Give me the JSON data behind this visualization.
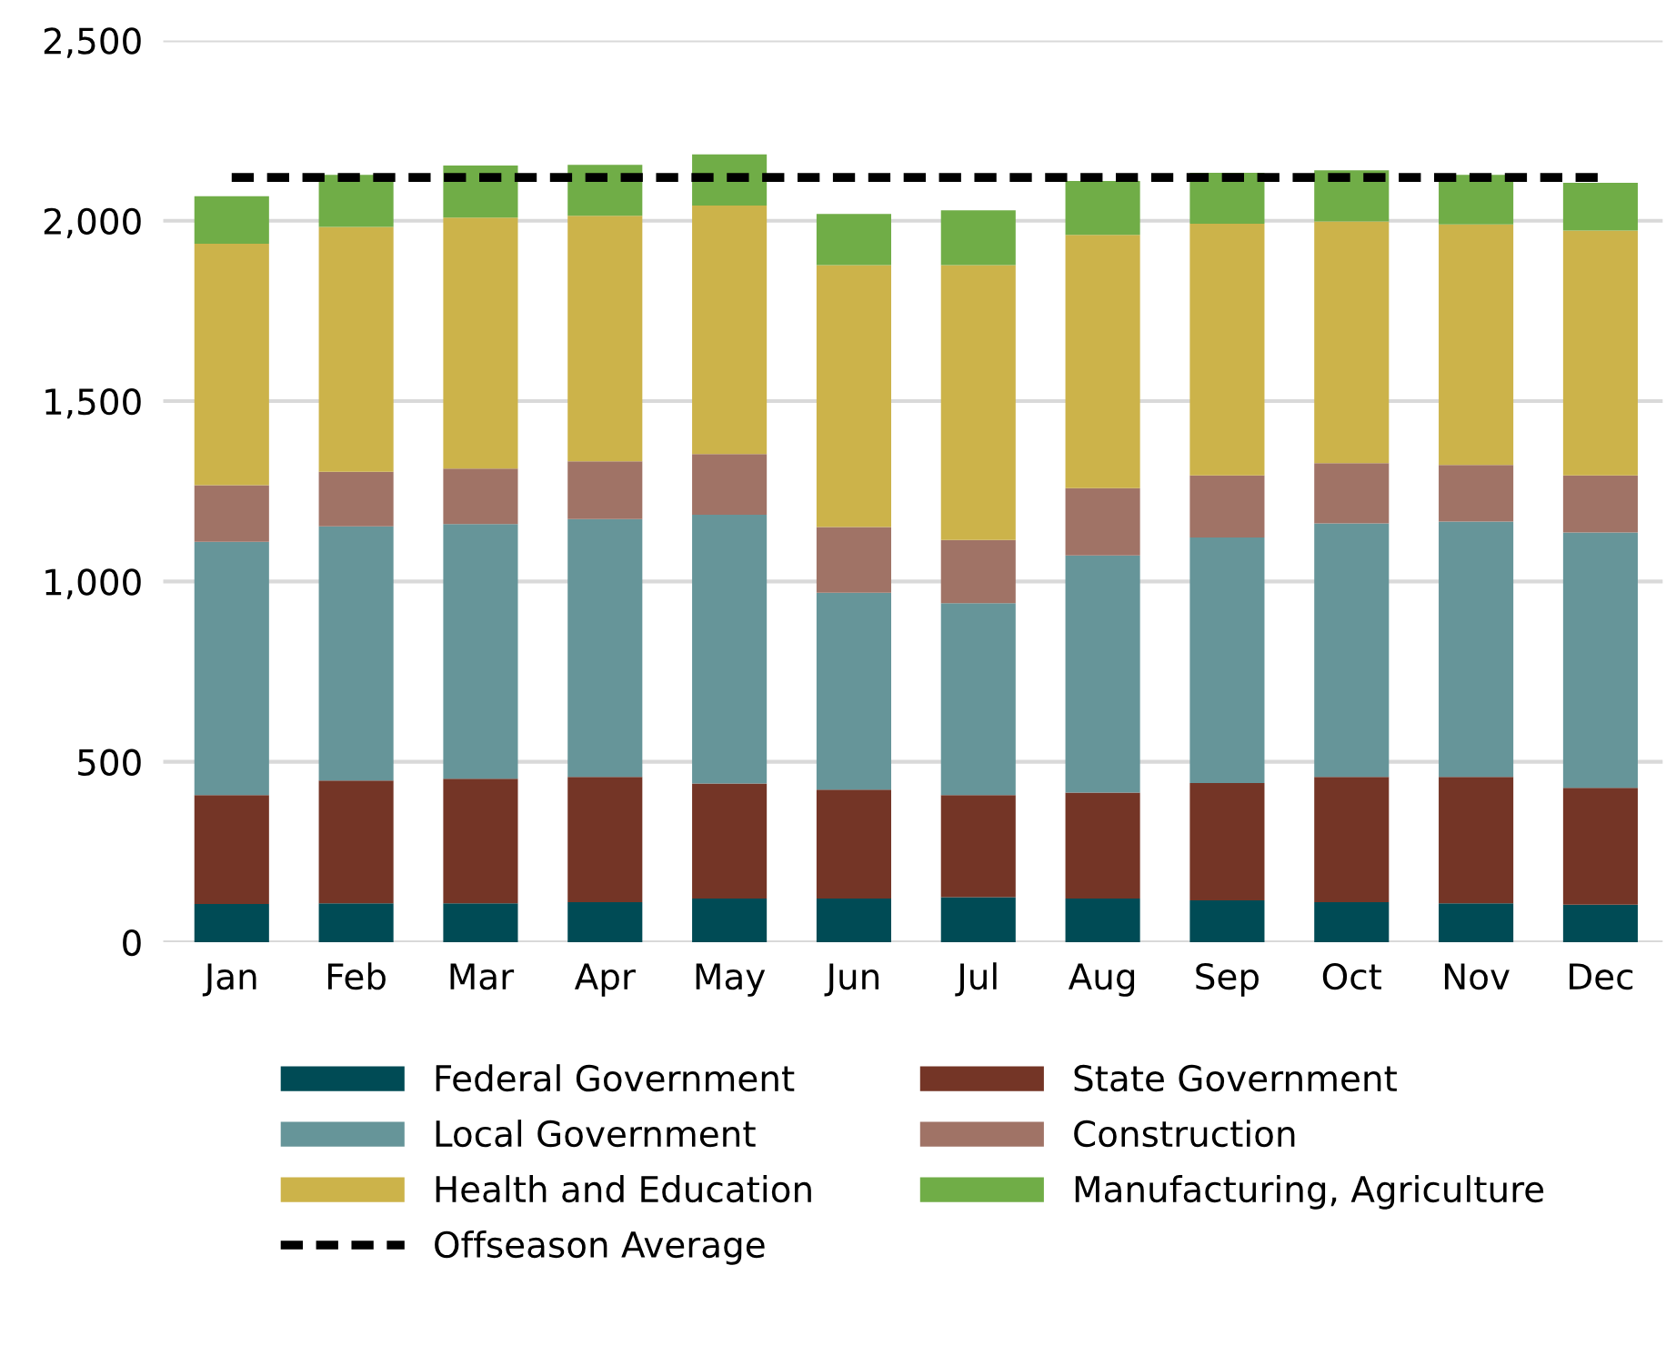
{
  "chart_data": {
    "type": "bar",
    "stacked": true,
    "categories": [
      "Jan",
      "Feb",
      "Mar",
      "Apr",
      "May",
      "Jun",
      "Jul",
      "Aug",
      "Sep",
      "Oct",
      "Nov",
      "Dec"
    ],
    "series": [
      {
        "name": "Federal Government",
        "color": "#004b55",
        "values": [
          106,
          108,
          108,
          111,
          121,
          121,
          125,
          121,
          116,
          111,
          108,
          104
        ]
      },
      {
        "name": "State Government",
        "color": "#743526",
        "values": [
          302,
          340,
          345,
          347,
          319,
          302,
          283,
          294,
          325,
          347,
          350,
          324
        ]
      },
      {
        "name": "Local Government",
        "color": "#669599",
        "values": [
          702,
          705,
          706,
          715,
          745,
          546,
          532,
          657,
          681,
          703,
          708,
          708
        ]
      },
      {
        "name": "Construction",
        "color": "#a07366",
        "values": [
          157,
          151,
          154,
          160,
          168,
          182,
          175,
          187,
          172,
          167,
          157,
          158
        ]
      },
      {
        "name": "Health and Education",
        "color": "#ccb34a",
        "values": [
          669,
          679,
          696,
          681,
          689,
          726,
          762,
          702,
          698,
          670,
          667,
          679
        ]
      },
      {
        "name": "Manufacturing, Agriculture",
        "color": "#70ad47",
        "values": [
          132,
          144,
          144,
          141,
          142,
          142,
          152,
          149,
          141,
          142,
          137,
          132
        ]
      }
    ],
    "ref_lines": [
      {
        "axis": "y",
        "value": 2120,
        "label": "Offseason Average",
        "color": "#000000",
        "line_style": "dashed"
      }
    ],
    "ylim": [
      0,
      2500
    ],
    "yticks": [
      {
        "value": 0,
        "label": "0"
      },
      {
        "value": 500,
        "label": "500"
      },
      {
        "value": 1000,
        "label": "1,000"
      },
      {
        "value": 1500,
        "label": "1,500"
      },
      {
        "value": 2000,
        "label": "2,000"
      },
      {
        "value": 2500,
        "label": "2,500"
      }
    ],
    "grid": "y",
    "legend": "bottom"
  }
}
